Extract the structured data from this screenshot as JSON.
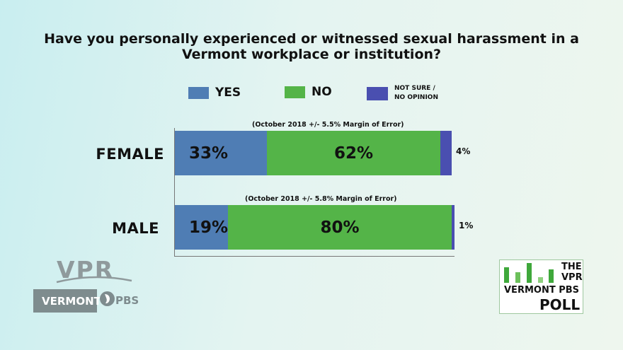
{
  "title_lines": [
    "Have you personally experienced or witnessed sexual harassment in a",
    "Vermont workplace or institution?"
  ],
  "legend": {
    "yes": "YES",
    "no": "NO",
    "not_sure_line1": "NOT SURE /",
    "not_sure_line2": "NO OPINION"
  },
  "colors": {
    "yes": "#4f7db4",
    "no": "#54b448",
    "not_sure": "#4a4fb0"
  },
  "chart_data": {
    "type": "bar",
    "orientation": "horizontal",
    "stacked": true,
    "title": "Have you personally experienced or witnessed sexual harassment in a Vermont workplace or institution?",
    "categories": [
      "FEMALE",
      "MALE"
    ],
    "series": [
      {
        "name": "YES",
        "values": [
          33,
          19
        ],
        "labels": [
          "33%",
          "19%"
        ]
      },
      {
        "name": "NO",
        "values": [
          62,
          80
        ],
        "labels": [
          "62%",
          "80%"
        ]
      },
      {
        "name": "NOT SURE / NO OPINION",
        "values": [
          4,
          1
        ],
        "labels": [
          "4%",
          "1%"
        ]
      }
    ],
    "annotations": [
      "(October 2018 +/- 5.5% Margin of Error)",
      "(October 2018 +/- 5.8% Margin of Error)"
    ],
    "xlim": [
      0,
      100
    ],
    "legend_position": "top"
  },
  "logo_left": {
    "vpr": "VPR",
    "vermont": "VERMONT",
    "pbs": "PBS"
  },
  "poll_logo": {
    "line1": "THE",
    "line2": "VPR",
    "line3": "VERMONT PBS",
    "line4": "POLL"
  }
}
